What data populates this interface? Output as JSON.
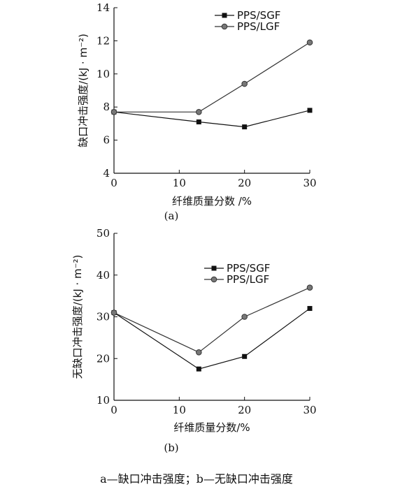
{
  "chart_data": [
    {
      "panel_label": "(a)",
      "type": "line",
      "x": [
        0,
        13,
        20,
        30
      ],
      "xlabel": "纤维质量分数 /%",
      "ylabel": "缺口冲击强度/(kJ · m⁻²)",
      "xlim": [
        0,
        30
      ],
      "ylim": [
        4,
        14
      ],
      "xticks": [
        0,
        10,
        20,
        30
      ],
      "yticks": [
        4,
        6,
        8,
        10,
        12,
        14
      ],
      "legend_position": "top-right",
      "grid": false,
      "series": [
        {
          "name": "PPS/SGF",
          "marker": "square",
          "color": "#111111",
          "values": [
            7.7,
            7.1,
            6.8,
            7.8
          ]
        },
        {
          "name": "PPS/LGF",
          "marker": "circle",
          "color": "#333333",
          "values": [
            7.7,
            7.7,
            9.4,
            11.9
          ]
        }
      ]
    },
    {
      "panel_label": "(b)",
      "type": "line",
      "x": [
        0,
        13,
        20,
        30
      ],
      "xlabel": "纤维质量分数/%",
      "ylabel": "无缺口冲击强度/(kJ · m⁻²)",
      "xlim": [
        0,
        30
      ],
      "ylim": [
        10,
        50
      ],
      "xticks": [
        0,
        10,
        20,
        30
      ],
      "yticks": [
        10,
        20,
        30,
        40,
        50
      ],
      "legend_position": "top-right",
      "grid": false,
      "series": [
        {
          "name": "PPS/SGF",
          "marker": "square",
          "color": "#111111",
          "values": [
            31,
            17.5,
            20.5,
            32
          ]
        },
        {
          "name": "PPS/LGF",
          "marker": "circle",
          "color": "#333333",
          "values": [
            31,
            21.5,
            30,
            37
          ]
        }
      ]
    }
  ],
  "caption": "a—缺口冲击强度；b—无缺口冲击强度"
}
